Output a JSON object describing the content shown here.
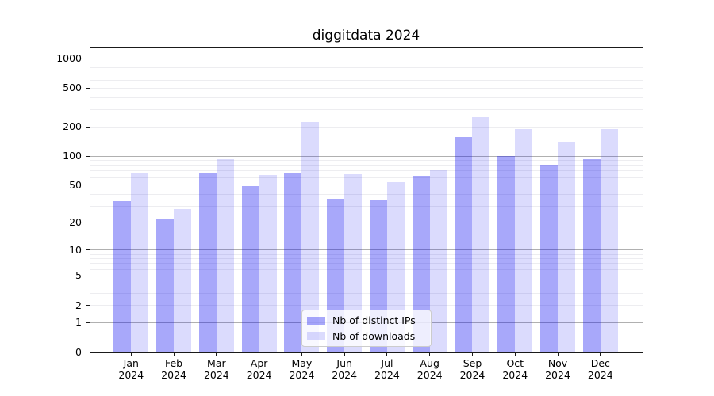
{
  "chart_data": {
    "type": "bar",
    "title": "diggitdata 2024",
    "x_year": "2024",
    "categories": [
      "Jan",
      "Feb",
      "Mar",
      "Apr",
      "May",
      "Jun",
      "Jul",
      "Aug",
      "Sep",
      "Oct",
      "Nov",
      "Dec"
    ],
    "series": [
      {
        "name": "Nb of distinct IPs",
        "color": "rgba(0,0,240,0.34)",
        "values": [
          34,
          22,
          66,
          49,
          66,
          36,
          35,
          62,
          157,
          100,
          82,
          93
        ]
      },
      {
        "name": "Nb of downloads",
        "color": "rgba(0,0,240,0.14)",
        "values": [
          66,
          28,
          92,
          64,
          224,
          65,
          54,
          71,
          249,
          188,
          140,
          188
        ]
      }
    ],
    "yscale": "log10(value+1)",
    "ylim": [
      0,
      1310
    ],
    "y_ticks": [
      0,
      1,
      2,
      5,
      10,
      20,
      50,
      100,
      200,
      500,
      1000
    ],
    "grid": {
      "major_color": "#b0b0b0",
      "minor_color": "#ededf0",
      "major_values": [
        1,
        10,
        100,
        1000
      ],
      "minor_decades": [
        1,
        10,
        100
      ]
    },
    "legend": {
      "position": "lower center",
      "border_color": "#cccccc",
      "background": "rgba(255,255,255,0.8)"
    }
  }
}
